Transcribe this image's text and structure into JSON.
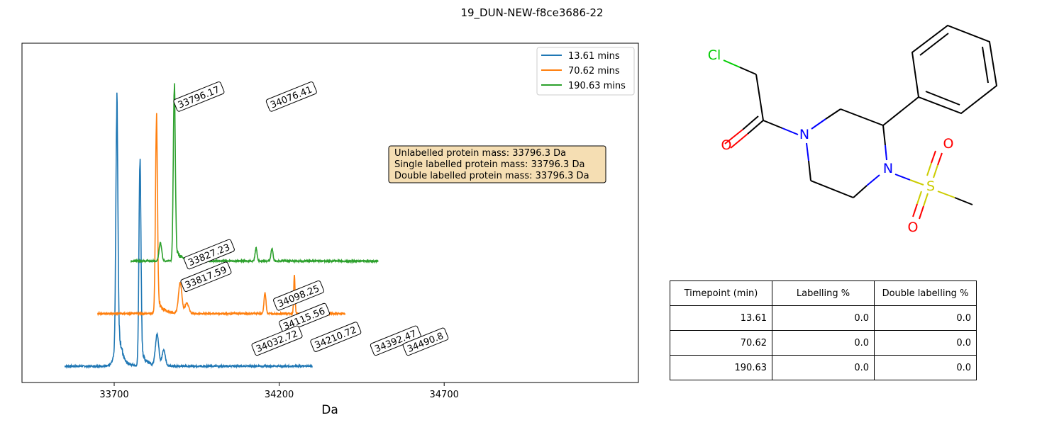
{
  "figure": {
    "title": "19_DUN-NEW-f8ce3686-22"
  },
  "chart_data": {
    "type": "line",
    "title": "",
    "xlabel": "Da",
    "ylabel": "",
    "xlim": [
      33560,
      34500
    ],
    "x_ticks": [
      33700,
      34200,
      34700
    ],
    "y_ticks": [],
    "grid": false,
    "legend_position": "top-right",
    "series": [
      {
        "name": "13.61 mins",
        "color": "#1f77b4",
        "offset_da": 0,
        "offset_level": 0,
        "x_range": [
          33550,
          34300
        ],
        "peaks": [
          {
            "x": 33708,
            "height": 0.9,
            "width": 3
          },
          {
            "x": 33778,
            "height": 0.78,
            "width": 3
          },
          {
            "x": 33830,
            "height": 0.12,
            "width": 5
          },
          {
            "x": 33850,
            "height": 0.06,
            "width": 5
          },
          {
            "x": 33710,
            "height": 0.08,
            "width": 10
          }
        ]
      },
      {
        "name": "70.62 mins",
        "color": "#ff7f0e",
        "offset_da": 50,
        "offset_level": 0.14,
        "x_range": [
          33600,
          34350
        ],
        "peaks": [
          {
            "x": 33778,
            "height": 0.73,
            "width": 3
          },
          {
            "x": 33850,
            "height": 0.12,
            "width": 5
          },
          {
            "x": 33870,
            "height": 0.04,
            "width": 6
          },
          {
            "x": 34107,
            "height": 0.08,
            "width": 3
          },
          {
            "x": 34196,
            "height": 0.15,
            "width": 2
          }
        ]
      },
      {
        "name": "190.63 mins",
        "color": "#2ca02c",
        "offset_da": 100,
        "offset_level": 0.28,
        "x_range": [
          33650,
          34400
        ],
        "peaks": [
          {
            "x": 33782,
            "height": 0.66,
            "width": 3
          },
          {
            "x": 33740,
            "height": 0.07,
            "width": 4
          },
          {
            "x": 34030,
            "height": 0.05,
            "width": 3
          },
          {
            "x": 34078,
            "height": 0.05,
            "width": 3
          }
        ]
      }
    ],
    "annotations": [
      {
        "text": "33796.17",
        "x": 33796.17,
        "level": 0.69
      },
      {
        "text": "33827.23",
        "x": 33827.23,
        "level": 0.27
      },
      {
        "text": "33817.59",
        "x": 33817.59,
        "level": 0.21
      },
      {
        "text": "34076.41",
        "x": 34076.41,
        "level": 0.69
      },
      {
        "text": "34098.25",
        "x": 34098.25,
        "level": 0.16
      },
      {
        "text": "34115.56",
        "x": 34115.56,
        "level": 0.1
      },
      {
        "text": "34032.72",
        "x": 34032.72,
        "level": 0.04
      },
      {
        "text": "34210.72",
        "x": 34210.72,
        "level": 0.05
      },
      {
        "text": "34392.47",
        "x": 34392.47,
        "level": 0.04
      },
      {
        "text": "34490.8",
        "x": 34490.8,
        "level": 0.04
      }
    ],
    "info_box": [
      "Unlabelled protein mass: 33796.3 Da",
      "Single labelled protein mass: 33796.3 Da",
      "Double labelled protein mass: 33796.3 Da"
    ],
    "info_box_color": "#f5deb3"
  },
  "structure": {
    "atom_colors": {
      "Cl": "#00cc00",
      "O": "#ff0000",
      "N": "#0000ff",
      "S": "#cccc00"
    },
    "atoms": [
      {
        "label": "Cl"
      },
      {
        "label": "O"
      },
      {
        "label": "N"
      },
      {
        "label": "N"
      },
      {
        "label": "S"
      },
      {
        "label": "O"
      },
      {
        "label": "O"
      }
    ]
  },
  "table": {
    "headers": [
      "Timepoint (min)",
      "Labelling %",
      "Double labelling %"
    ],
    "rows": [
      [
        "13.61",
        "0.0",
        "0.0"
      ],
      [
        "70.62",
        "0.0",
        "0.0"
      ],
      [
        "190.63",
        "0.0",
        "0.0"
      ]
    ]
  }
}
